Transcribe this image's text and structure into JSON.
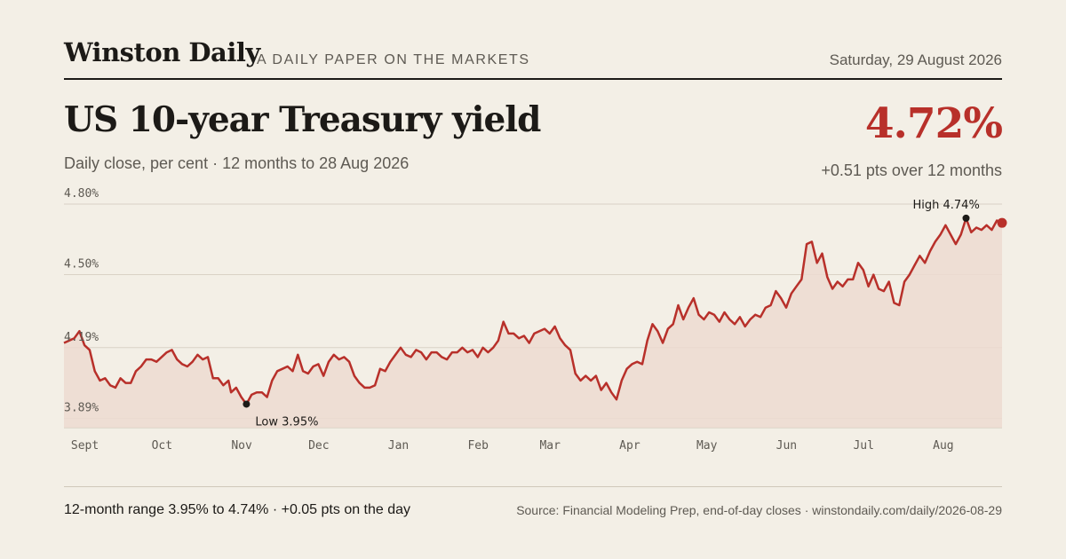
{
  "masthead": {
    "brand": "Winston Daily",
    "tagline": "A DAILY PAPER ON THE MARKETS",
    "date": "Saturday, 29 August 2026"
  },
  "headline": {
    "title": "US 10-year Treasury yield",
    "subtitle": "Daily close, per cent · 12 months to 28 Aug 2026",
    "value": "4.72%",
    "change": "+0.51 pts over 12 months"
  },
  "footer": {
    "range_text": "12-month range 3.95% to 4.74% · +0.05 pts on the day",
    "source": "Source: Financial Modeling Prep, end-of-day closes · winstondaily.com/daily/2026-08-29"
  },
  "colors": {
    "line": "#b8302a",
    "area": "#ecdbd0",
    "grid": "#d9d2c5",
    "marker": "#1c1a17"
  },
  "chart_data": {
    "type": "area",
    "title": "US 10-year Treasury yield",
    "xlabel": "",
    "ylabel": "",
    "ylim": [
      3.85,
      4.83
    ],
    "y_ticks": [
      {
        "value": 4.8,
        "label": "4.80%"
      },
      {
        "value": 4.5,
        "label": "4.50%"
      },
      {
        "value": 4.19,
        "label": "4.19%"
      },
      {
        "value": 3.89,
        "label": "3.89%"
      }
    ],
    "x_ticks": [
      {
        "date": "2025-09-01",
        "label": "Sept"
      },
      {
        "date": "2025-10-01",
        "label": "Oct"
      },
      {
        "date": "2025-11-01",
        "label": "Nov"
      },
      {
        "date": "2025-12-01",
        "label": "Dec"
      },
      {
        "date": "2026-01-01",
        "label": "Jan"
      },
      {
        "date": "2026-02-01",
        "label": "Feb"
      },
      {
        "date": "2026-03-01",
        "label": "Mar"
      },
      {
        "date": "2026-04-01",
        "label": "Apr"
      },
      {
        "date": "2026-05-01",
        "label": "May"
      },
      {
        "date": "2026-06-01",
        "label": "Jun"
      },
      {
        "date": "2026-07-01",
        "label": "Jul"
      },
      {
        "date": "2026-08-01",
        "label": "Aug"
      }
    ],
    "grid": true,
    "series": [
      {
        "points": [
          [
            "2025-08-28",
            4.21
          ],
          [
            "2025-09-01",
            4.23
          ],
          [
            "2025-09-03",
            4.26
          ],
          [
            "2025-09-05",
            4.2
          ],
          [
            "2025-09-07",
            4.18
          ],
          [
            "2025-09-09",
            4.09
          ],
          [
            "2025-09-11",
            4.05
          ],
          [
            "2025-09-13",
            4.06
          ],
          [
            "2025-09-15",
            4.03
          ],
          [
            "2025-09-17",
            4.02
          ],
          [
            "2025-09-19",
            4.06
          ],
          [
            "2025-09-21",
            4.04
          ],
          [
            "2025-09-23",
            4.04
          ],
          [
            "2025-09-25",
            4.09
          ],
          [
            "2025-09-27",
            4.11
          ],
          [
            "2025-09-29",
            4.14
          ],
          [
            "2025-10-01",
            4.14
          ],
          [
            "2025-10-03",
            4.13
          ],
          [
            "2025-10-05",
            4.15
          ],
          [
            "2025-10-07",
            4.17
          ],
          [
            "2025-10-09",
            4.18
          ],
          [
            "2025-10-11",
            4.14
          ],
          [
            "2025-10-13",
            4.12
          ],
          [
            "2025-10-15",
            4.11
          ],
          [
            "2025-10-17",
            4.13
          ],
          [
            "2025-10-19",
            4.16
          ],
          [
            "2025-10-21",
            4.14
          ],
          [
            "2025-10-23",
            4.15
          ],
          [
            "2025-10-25",
            4.06
          ],
          [
            "2025-10-27",
            4.06
          ],
          [
            "2025-10-29",
            4.03
          ],
          [
            "2025-10-31",
            4.05
          ],
          [
            "2025-11-01",
            4.0
          ],
          [
            "2025-11-03",
            4.02
          ],
          [
            "2025-11-05",
            3.98
          ],
          [
            "2025-11-07",
            3.95
          ],
          [
            "2025-11-09",
            3.99
          ],
          [
            "2025-11-11",
            4.0
          ],
          [
            "2025-11-13",
            4.0
          ],
          [
            "2025-11-15",
            3.98
          ],
          [
            "2025-11-17",
            4.05
          ],
          [
            "2025-11-19",
            4.09
          ],
          [
            "2025-11-21",
            4.1
          ],
          [
            "2025-11-23",
            4.11
          ],
          [
            "2025-11-25",
            4.09
          ],
          [
            "2025-11-27",
            4.16
          ],
          [
            "2025-11-29",
            4.09
          ],
          [
            "2025-12-01",
            4.08
          ],
          [
            "2025-12-03",
            4.11
          ],
          [
            "2025-12-05",
            4.12
          ],
          [
            "2025-12-07",
            4.07
          ],
          [
            "2025-12-09",
            4.13
          ],
          [
            "2025-12-11",
            4.16
          ],
          [
            "2025-12-13",
            4.14
          ],
          [
            "2025-12-15",
            4.15
          ],
          [
            "2025-12-17",
            4.13
          ],
          [
            "2025-12-19",
            4.07
          ],
          [
            "2025-12-21",
            4.04
          ],
          [
            "2025-12-23",
            4.02
          ],
          [
            "2025-12-25",
            4.02
          ],
          [
            "2025-12-27",
            4.03
          ],
          [
            "2025-12-29",
            4.1
          ],
          [
            "2025-12-31",
            4.09
          ],
          [
            "2026-01-02",
            4.13
          ],
          [
            "2026-01-04",
            4.16
          ],
          [
            "2026-01-06",
            4.19
          ],
          [
            "2026-01-08",
            4.16
          ],
          [
            "2026-01-10",
            4.15
          ],
          [
            "2026-01-12",
            4.18
          ],
          [
            "2026-01-14",
            4.17
          ],
          [
            "2026-01-16",
            4.14
          ],
          [
            "2026-01-18",
            4.17
          ],
          [
            "2026-01-20",
            4.17
          ],
          [
            "2026-01-22",
            4.15
          ],
          [
            "2026-01-24",
            4.14
          ],
          [
            "2026-01-26",
            4.17
          ],
          [
            "2026-01-28",
            4.17
          ],
          [
            "2026-01-30",
            4.19
          ],
          [
            "2026-02-01",
            4.17
          ],
          [
            "2026-02-03",
            4.18
          ],
          [
            "2026-02-05",
            4.15
          ],
          [
            "2026-02-07",
            4.19
          ],
          [
            "2026-02-09",
            4.17
          ],
          [
            "2026-02-11",
            4.19
          ],
          [
            "2026-02-13",
            4.22
          ],
          [
            "2026-02-15",
            4.3
          ],
          [
            "2026-02-17",
            4.25
          ],
          [
            "2026-02-19",
            4.25
          ],
          [
            "2026-02-21",
            4.23
          ],
          [
            "2026-02-23",
            4.24
          ],
          [
            "2026-02-25",
            4.21
          ],
          [
            "2026-02-27",
            4.25
          ],
          [
            "2026-03-01",
            4.26
          ],
          [
            "2026-03-03",
            4.27
          ],
          [
            "2026-03-05",
            4.25
          ],
          [
            "2026-03-07",
            4.28
          ],
          [
            "2026-03-09",
            4.23
          ],
          [
            "2026-03-11",
            4.2
          ],
          [
            "2026-03-13",
            4.18
          ],
          [
            "2026-03-15",
            4.08
          ],
          [
            "2026-03-17",
            4.05
          ],
          [
            "2026-03-19",
            4.07
          ],
          [
            "2026-03-21",
            4.05
          ],
          [
            "2026-03-23",
            4.07
          ],
          [
            "2026-03-25",
            4.01
          ],
          [
            "2026-03-27",
            4.04
          ],
          [
            "2026-03-29",
            4.0
          ],
          [
            "2026-03-31",
            3.97
          ],
          [
            "2026-04-02",
            4.05
          ],
          [
            "2026-04-04",
            4.1
          ],
          [
            "2026-04-06",
            4.12
          ],
          [
            "2026-04-08",
            4.13
          ],
          [
            "2026-04-10",
            4.12
          ],
          [
            "2026-04-12",
            4.22
          ],
          [
            "2026-04-14",
            4.29
          ],
          [
            "2026-04-16",
            4.26
          ],
          [
            "2026-04-18",
            4.21
          ],
          [
            "2026-04-20",
            4.27
          ],
          [
            "2026-04-22",
            4.29
          ],
          [
            "2026-04-24",
            4.37
          ],
          [
            "2026-04-26",
            4.31
          ],
          [
            "2026-04-28",
            4.36
          ],
          [
            "2026-04-30",
            4.4
          ],
          [
            "2026-05-02",
            4.33
          ],
          [
            "2026-05-04",
            4.31
          ],
          [
            "2026-05-06",
            4.34
          ],
          [
            "2026-05-08",
            4.33
          ],
          [
            "2026-05-10",
            4.3
          ],
          [
            "2026-05-12",
            4.34
          ],
          [
            "2026-05-14",
            4.31
          ],
          [
            "2026-05-16",
            4.29
          ],
          [
            "2026-05-18",
            4.32
          ],
          [
            "2026-05-20",
            4.28
          ],
          [
            "2026-05-22",
            4.31
          ],
          [
            "2026-05-24",
            4.33
          ],
          [
            "2026-05-26",
            4.32
          ],
          [
            "2026-05-28",
            4.36
          ],
          [
            "2026-05-30",
            4.37
          ],
          [
            "2026-06-01",
            4.43
          ],
          [
            "2026-06-03",
            4.4
          ],
          [
            "2026-06-05",
            4.36
          ],
          [
            "2026-06-07",
            4.42
          ],
          [
            "2026-06-09",
            4.45
          ],
          [
            "2026-06-11",
            4.48
          ],
          [
            "2026-06-13",
            4.63
          ],
          [
            "2026-06-15",
            4.64
          ],
          [
            "2026-06-17",
            4.55
          ],
          [
            "2026-06-19",
            4.59
          ],
          [
            "2026-06-21",
            4.49
          ],
          [
            "2026-06-23",
            4.44
          ],
          [
            "2026-06-25",
            4.47
          ],
          [
            "2026-06-27",
            4.45
          ],
          [
            "2026-06-29",
            4.48
          ],
          [
            "2026-07-01",
            4.48
          ],
          [
            "2026-07-03",
            4.55
          ],
          [
            "2026-07-05",
            4.52
          ],
          [
            "2026-07-07",
            4.45
          ],
          [
            "2026-07-09",
            4.5
          ],
          [
            "2026-07-11",
            4.44
          ],
          [
            "2026-07-13",
            4.43
          ],
          [
            "2026-07-15",
            4.47
          ],
          [
            "2026-07-17",
            4.38
          ],
          [
            "2026-07-19",
            4.37
          ],
          [
            "2026-07-21",
            4.47
          ],
          [
            "2026-07-23",
            4.5
          ],
          [
            "2026-07-25",
            4.54
          ],
          [
            "2026-07-27",
            4.58
          ],
          [
            "2026-07-29",
            4.55
          ],
          [
            "2026-07-31",
            4.6
          ],
          [
            "2026-08-02",
            4.64
          ],
          [
            "2026-08-04",
            4.67
          ],
          [
            "2026-08-06",
            4.71
          ],
          [
            "2026-08-08",
            4.67
          ],
          [
            "2026-08-10",
            4.63
          ],
          [
            "2026-08-12",
            4.67
          ],
          [
            "2026-08-14",
            4.74
          ],
          [
            "2026-08-16",
            4.68
          ],
          [
            "2026-08-18",
            4.7
          ],
          [
            "2026-08-20",
            4.69
          ],
          [
            "2026-08-22",
            4.71
          ],
          [
            "2026-08-24",
            4.69
          ],
          [
            "2026-08-26",
            4.73
          ],
          [
            "2026-08-28",
            4.72
          ]
        ]
      }
    ],
    "annotations": [
      {
        "date": "2026-08-14",
        "value": 4.74,
        "label": "High 4.74%",
        "position": "above"
      },
      {
        "date": "2025-11-07",
        "value": 3.95,
        "label": "Low 3.95%",
        "position": "below"
      }
    ],
    "last_point": {
      "date": "2026-08-28",
      "value": 4.72
    }
  }
}
